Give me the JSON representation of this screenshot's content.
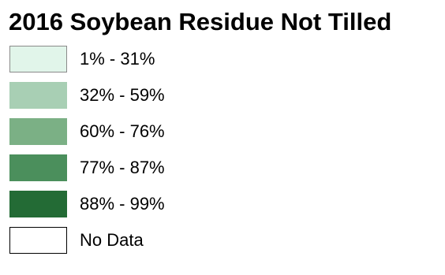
{
  "legend": {
    "title": "2016 Soybean Residue Not Tilled",
    "items": [
      {
        "label": "1% - 31%",
        "color": "#e1f5ea"
      },
      {
        "label": "32% - 59%",
        "color": "#a8cfb4"
      },
      {
        "label": "60% - 76%",
        "color": "#7bb085"
      },
      {
        "label": "77% - 87%",
        "color": "#4b8f5c"
      },
      {
        "label": "88% - 99%",
        "color": "#236b35"
      },
      {
        "label": "No Data",
        "color": "#ffffff"
      }
    ]
  }
}
